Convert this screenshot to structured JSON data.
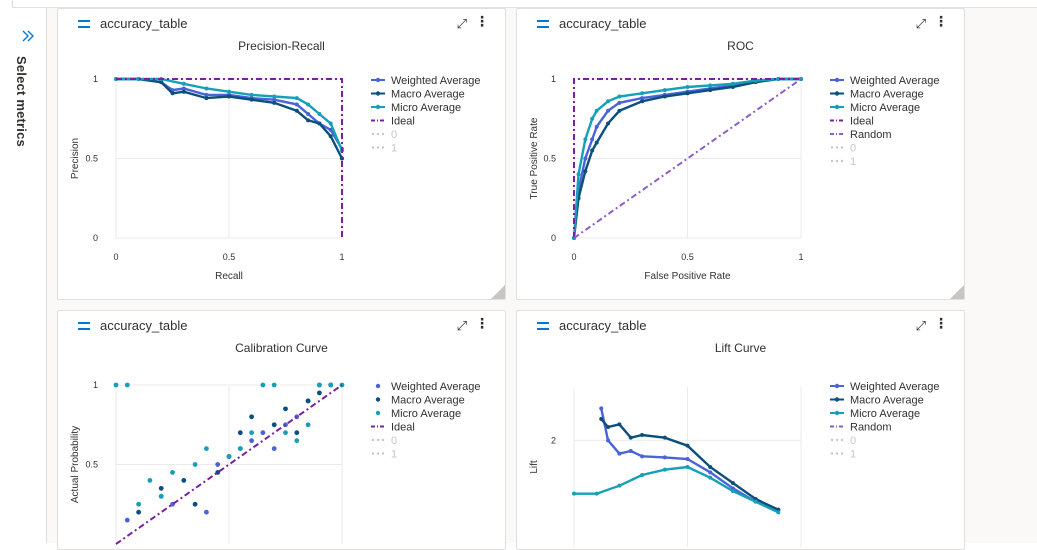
{
  "rail": {
    "label": "Select metrics",
    "icon": "double-chevron-right-icon"
  },
  "cards": [
    {
      "title": "accuracy_table",
      "chart_title": "Precision-Recall"
    },
    {
      "title": "accuracy_table",
      "chart_title": "ROC"
    },
    {
      "title": "accuracy_table",
      "chart_title": "Calibration Curve"
    },
    {
      "title": "accuracy_table",
      "chart_title": "Lift Curve"
    }
  ],
  "colors": {
    "weighted": "#4a63d8",
    "macro": "#0b4f7c",
    "micro": "#16a0b8",
    "ideal": "#7a1fa2",
    "random": "#8a5fc9",
    "dim": "#c8c6c4",
    "accent": "#0078d4"
  },
  "chart_data": [
    {
      "type": "line",
      "title": "Precision-Recall",
      "xlabel": "Recall",
      "ylabel": "Precision",
      "xlim": [
        0,
        1
      ],
      "ylim": [
        0,
        1
      ],
      "xticks": [
        "0",
        "0.5",
        "1"
      ],
      "yticks": [
        "0",
        "0.5",
        "1"
      ],
      "legend": [
        "Weighted Average",
        "Macro Average",
        "Micro Average",
        "Ideal",
        "0",
        "1"
      ],
      "series": [
        {
          "name": "Weighted Average",
          "x": [
            0,
            0.1,
            0.2,
            0.25,
            0.3,
            0.4,
            0.5,
            0.6,
            0.7,
            0.8,
            0.85,
            0.9,
            0.95,
            1
          ],
          "y": [
            1,
            1,
            0.98,
            0.93,
            0.94,
            0.9,
            0.9,
            0.88,
            0.87,
            0.84,
            0.78,
            0.72,
            0.68,
            0.56
          ]
        },
        {
          "name": "Macro Average",
          "x": [
            0,
            0.1,
            0.2,
            0.25,
            0.3,
            0.4,
            0.5,
            0.6,
            0.7,
            0.8,
            0.85,
            0.9,
            0.95,
            1
          ],
          "y": [
            1,
            1,
            0.98,
            0.91,
            0.92,
            0.88,
            0.89,
            0.87,
            0.85,
            0.8,
            0.74,
            0.72,
            0.64,
            0.5
          ]
        },
        {
          "name": "Micro Average",
          "x": [
            0,
            0.1,
            0.2,
            0.3,
            0.4,
            0.5,
            0.6,
            0.7,
            0.8,
            0.85,
            0.9,
            0.95,
            1
          ],
          "y": [
            1,
            1,
            1,
            0.97,
            0.94,
            0.92,
            0.9,
            0.89,
            0.88,
            0.84,
            0.78,
            0.72,
            0.55
          ]
        },
        {
          "name": "Ideal",
          "x": [
            0,
            1,
            1
          ],
          "y": [
            1,
            1,
            0
          ]
        }
      ]
    },
    {
      "type": "line",
      "title": "ROC",
      "xlabel": "False Positive Rate",
      "ylabel": "True Positive Rate",
      "xlim": [
        0,
        1
      ],
      "ylim": [
        0,
        1
      ],
      "xticks": [
        "0",
        "0.5",
        "1"
      ],
      "yticks": [
        "0",
        "0.5",
        "1"
      ],
      "legend": [
        "Weighted Average",
        "Macro Average",
        "Micro Average",
        "Ideal",
        "Random",
        "0",
        "1"
      ],
      "series": [
        {
          "name": "Weighted Average",
          "x": [
            0,
            0.02,
            0.05,
            0.08,
            0.1,
            0.15,
            0.2,
            0.3,
            0.4,
            0.5,
            0.6,
            0.7,
            0.8,
            0.9,
            1
          ],
          "y": [
            0,
            0.3,
            0.5,
            0.62,
            0.7,
            0.8,
            0.85,
            0.88,
            0.9,
            0.92,
            0.94,
            0.96,
            0.99,
            1,
            1
          ]
        },
        {
          "name": "Macro Average",
          "x": [
            0,
            0.02,
            0.05,
            0.08,
            0.1,
            0.15,
            0.2,
            0.3,
            0.4,
            0.5,
            0.6,
            0.7,
            0.8,
            0.9,
            1
          ],
          "y": [
            0,
            0.25,
            0.42,
            0.55,
            0.6,
            0.72,
            0.8,
            0.86,
            0.89,
            0.91,
            0.93,
            0.95,
            0.98,
            1,
            1
          ]
        },
        {
          "name": "Micro Average",
          "x": [
            0,
            0.02,
            0.05,
            0.08,
            0.1,
            0.15,
            0.2,
            0.3,
            0.4,
            0.5,
            0.6,
            0.7,
            0.8,
            0.9,
            1
          ],
          "y": [
            0,
            0.4,
            0.62,
            0.75,
            0.8,
            0.86,
            0.89,
            0.91,
            0.93,
            0.95,
            0.96,
            0.97,
            0.99,
            1,
            1
          ]
        },
        {
          "name": "Ideal",
          "x": [
            0,
            0,
            1
          ],
          "y": [
            0,
            1,
            1
          ]
        },
        {
          "name": "Random",
          "x": [
            0,
            1
          ],
          "y": [
            0,
            1
          ]
        }
      ]
    },
    {
      "type": "scatter",
      "title": "Calibration Curve",
      "xlabel": "",
      "ylabel": "Actual Probability",
      "xlim": [
        0,
        1
      ],
      "ylim": [
        0,
        1
      ],
      "yticks": [
        "0.5",
        "1"
      ],
      "legend": [
        "Weighted Average",
        "Macro Average",
        "Micro Average",
        "Ideal",
        "0",
        "1"
      ],
      "series": [
        {
          "name": "Weighted Average",
          "x": [
            0.05,
            0.2,
            0.25,
            0.4,
            0.45,
            0.5,
            0.55,
            0.6,
            0.65,
            0.7,
            0.75,
            0.8,
            0.85,
            0.9
          ],
          "y": [
            0.15,
            0.3,
            0.25,
            0.2,
            0.5,
            0.55,
            0.6,
            0.65,
            0.7,
            0.6,
            0.75,
            0.8,
            0.9,
            1
          ]
        },
        {
          "name": "Macro Average",
          "x": [
            0.1,
            0.2,
            0.3,
            0.35,
            0.45,
            0.5,
            0.55,
            0.6,
            0.7,
            0.75,
            0.8,
            0.85,
            0.9,
            0.95
          ],
          "y": [
            0.2,
            0.35,
            0.4,
            0.25,
            0.45,
            0.55,
            0.7,
            0.8,
            0.75,
            0.85,
            0.7,
            0.9,
            0.95,
            1
          ]
        },
        {
          "name": "Micro Average",
          "x": [
            0,
            0.05,
            0.1,
            0.15,
            0.2,
            0.25,
            0.35,
            0.4,
            0.5,
            0.55,
            0.6,
            0.65,
            0.7,
            0.75,
            0.8,
            0.85,
            0.9,
            0.95,
            1
          ],
          "y": [
            1,
            1,
            0.25,
            0.4,
            0.3,
            0.45,
            0.5,
            0.6,
            0.55,
            0.6,
            0.7,
            1,
            1,
            0.7,
            0.65,
            0.75,
            1,
            1,
            1
          ]
        },
        {
          "name": "Ideal",
          "x": [
            0,
            1
          ],
          "y": [
            0,
            1
          ]
        }
      ]
    },
    {
      "type": "line",
      "title": "Lift Curve",
      "xlabel": "",
      "ylabel": "Lift",
      "yticks": [
        "2"
      ],
      "legend": [
        "Weighted Average",
        "Macro Average",
        "Micro Average",
        "Random",
        "0",
        "1"
      ],
      "series": [
        {
          "name": "Weighted Average",
          "x": [
            0.12,
            0.15,
            0.2,
            0.25,
            0.3,
            0.4,
            0.5,
            0.6,
            0.7,
            0.8,
            0.9
          ],
          "y": [
            2.6,
            2.0,
            1.75,
            1.8,
            1.7,
            1.68,
            1.65,
            1.4,
            1.1,
            0.85,
            0.7
          ]
        },
        {
          "name": "Macro Average",
          "x": [
            0.12,
            0.15,
            0.2,
            0.25,
            0.3,
            0.4,
            0.5,
            0.6,
            0.7,
            0.8,
            0.9
          ],
          "y": [
            2.4,
            2.25,
            2.3,
            2.05,
            2.1,
            2.05,
            1.9,
            1.5,
            1.2,
            0.9,
            0.7
          ]
        },
        {
          "name": "Micro Average",
          "x": [
            0,
            0.1,
            0.2,
            0.3,
            0.4,
            0.5,
            0.6,
            0.7,
            0.8,
            0.9
          ],
          "y": [
            1.0,
            1.0,
            1.15,
            1.35,
            1.45,
            1.5,
            1.3,
            1.05,
            0.85,
            0.65
          ]
        }
      ]
    }
  ]
}
